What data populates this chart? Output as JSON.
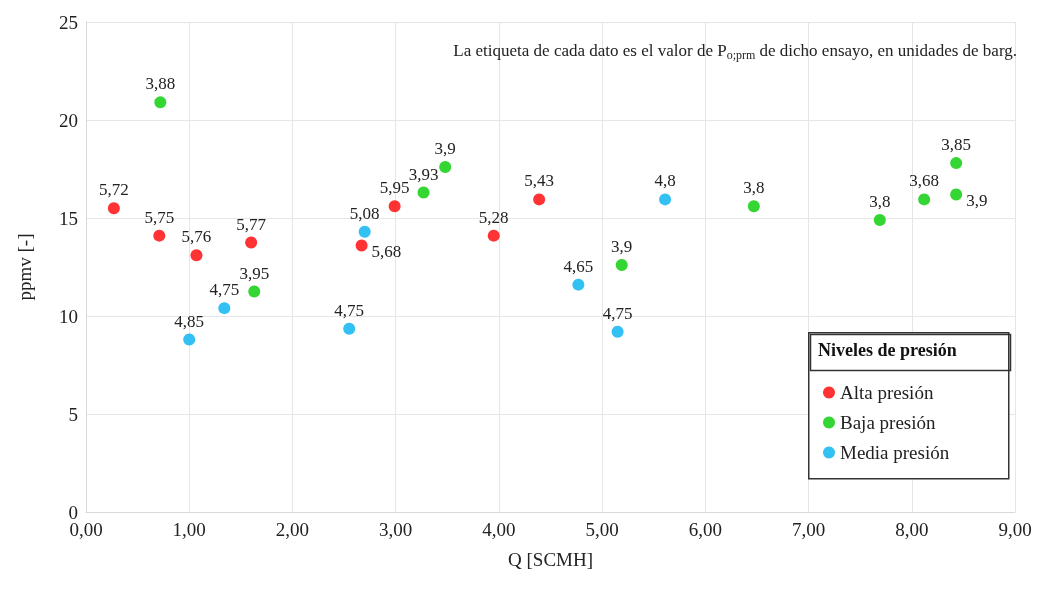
{
  "chart_data": {
    "type": "scatter",
    "xlabel": "Q [SCMH]",
    "ylabel": "ppmv [-]",
    "legend_title": "Niveles de presión",
    "legend": "bottom right",
    "grid": true,
    "marker": "circle",
    "annotations": [
      "La etiqueta de cada dato es el valor de P$_{o;prm}$ de dicho ensayo, en unidades de barg.",
      {
        "text": "5,72",
        "x": 0.27,
        "y": 15.5
      },
      {
        "text": "5,75",
        "x": 0.71,
        "y": 14.1
      },
      {
        "text": "5,76",
        "x": 1.07,
        "y": 13.1
      },
      {
        "text": "5,77",
        "x": 1.6,
        "y": 13.75
      },
      {
        "text": "5,68",
        "x": 2.67,
        "y": 13.6
      },
      {
        "text": "5,95",
        "x": 2.99,
        "y": 15.6
      },
      {
        "text": "5,28",
        "x": 3.95,
        "y": 14.1
      },
      {
        "text": "5,43",
        "x": 4.39,
        "y": 15.95
      },
      {
        "text": "3,88",
        "x": 0.72,
        "y": 20.9
      },
      {
        "text": "3,95",
        "x": 1.63,
        "y": 11.25
      },
      {
        "text": "3,93",
        "x": 3.27,
        "y": 16.3
      },
      {
        "text": "3,9",
        "x": 3.48,
        "y": 17.6
      },
      {
        "text": "3,9",
        "x": 5.19,
        "y": 12.6
      },
      {
        "text": "3,8",
        "x": 6.47,
        "y": 15.6
      },
      {
        "text": "3,8",
        "x": 7.69,
        "y": 14.9
      },
      {
        "text": "3,68",
        "x": 8.12,
        "y": 15.95
      },
      {
        "text": "3,85",
        "x": 8.43,
        "y": 17.8
      },
      {
        "text": "3,9",
        "x": 8.43,
        "y": 16.2
      },
      {
        "text": "4,85",
        "x": 1.0,
        "y": 8.8
      },
      {
        "text": "4,75",
        "x": 1.34,
        "y": 10.4
      },
      {
        "text": "4,75",
        "x": 2.55,
        "y": 9.35
      },
      {
        "text": "5,08",
        "x": 2.7,
        "y": 14.3
      },
      {
        "text": "4,65",
        "x": 4.77,
        "y": 11.6
      },
      {
        "text": "4,75",
        "x": 5.15,
        "y": 9.2
      },
      {
        "text": "4,8",
        "x": 5.61,
        "y": 15.95
      }
    ],
    "xlim": [
      0,
      9
    ],
    "xticks": [
      {
        "value": 0,
        "label": "0,00"
      },
      {
        "value": 1,
        "label": "1,00"
      },
      {
        "value": 2,
        "label": "2,00"
      },
      {
        "value": 3,
        "label": "3,00"
      },
      {
        "value": 4,
        "label": "4,00"
      },
      {
        "value": 5,
        "label": "5,00"
      },
      {
        "value": 6,
        "label": "6,00"
      },
      {
        "value": 7,
        "label": "7,00"
      },
      {
        "value": 8,
        "label": "8,00"
      },
      {
        "value": 9,
        "label": "9,00"
      }
    ],
    "ylim": [
      0,
      25
    ],
    "yticks": [
      0,
      5,
      10,
      15,
      20,
      25
    ],
    "series": [
      {
        "name": "Alta presión",
        "color": "#ff0000",
        "x": [
          0.27,
          0.71,
          1.07,
          1.6,
          2.67,
          2.99,
          3.95,
          4.39
        ],
        "values": [
          15.5,
          14.1,
          13.1,
          13.75,
          13.6,
          15.6,
          14.1,
          15.95
        ]
      },
      {
        "name": "Baja presión",
        "color": "#00cc00",
        "x": [
          0.72,
          1.63,
          3.27,
          3.48,
          5.19,
          6.47,
          7.69,
          8.12,
          8.43,
          8.43
        ],
        "values": [
          20.9,
          11.25,
          16.3,
          17.6,
          12.6,
          15.6,
          14.9,
          15.95,
          17.8,
          16.2
        ]
      },
      {
        "name": "Media presión",
        "color": "#00b0f0",
        "x": [
          1.0,
          1.34,
          2.55,
          2.7,
          4.77,
          5.15,
          5.61
        ],
        "values": [
          8.8,
          10.4,
          9.35,
          14.3,
          11.6,
          9.2,
          15.95
        ]
      }
    ]
  }
}
